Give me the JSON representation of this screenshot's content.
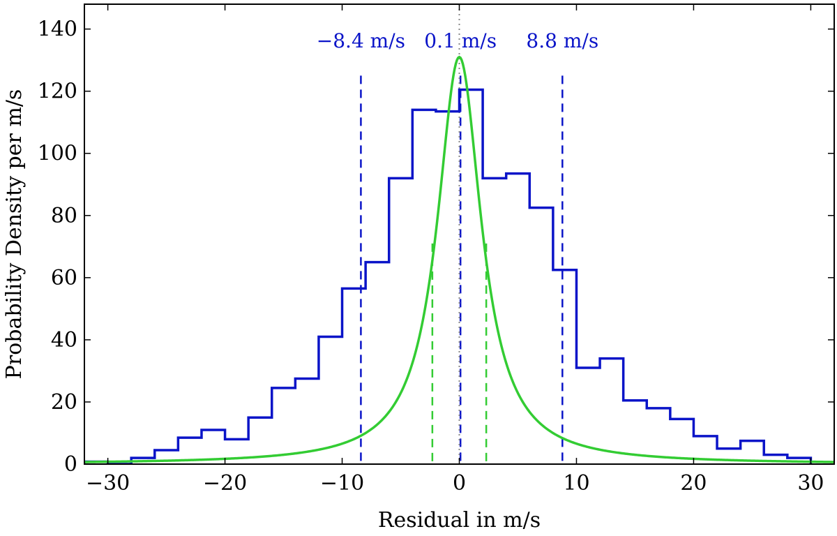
{
  "chart_data": {
    "type": "histogram",
    "title": "",
    "xlabel": "Residual in m/s",
    "ylabel": "Probability Density per m/s",
    "xlim": [
      -32,
      32
    ],
    "ylim": [
      0,
      148
    ],
    "xticks": [
      -30,
      -20,
      -10,
      0,
      10,
      20,
      30
    ],
    "xtick_labels": [
      "−30",
      "−20",
      "−10",
      "0",
      "10",
      "20",
      "30"
    ],
    "yticks": [
      0,
      20,
      40,
      60,
      80,
      100,
      120,
      140
    ],
    "ytick_labels": [
      "0",
      "20",
      "40",
      "60",
      "80",
      "100",
      "120",
      "140"
    ],
    "grid": false,
    "histogram": {
      "name": "",
      "color": "#0a14c8",
      "bin_edges": [
        -32,
        -30,
        -28,
        -26,
        -24,
        -22,
        -20,
        -18,
        -16,
        -14,
        -12,
        -10,
        -8,
        -6,
        -4,
        -2,
        0,
        2,
        4,
        6,
        8,
        10,
        12,
        14,
        16,
        18,
        20,
        22,
        24,
        26,
        28,
        30
      ],
      "values": [
        0.8,
        0,
        2,
        4.5,
        8.5,
        11,
        8,
        15,
        24.5,
        27.5,
        41,
        56.5,
        65,
        92,
        114,
        113.5,
        120.5,
        92,
        93.5,
        82.5,
        62.5,
        31,
        34,
        20.5,
        18,
        14.5,
        9,
        5,
        7.5,
        3,
        2
      ]
    },
    "fit_curve": {
      "name": "",
      "color": "#33cc33",
      "shape": "lorentzian",
      "peak": 131,
      "center": 0,
      "half_width": 2.3
    },
    "vlines": [
      {
        "x": -8.4,
        "y_top": 125,
        "style": "dashed",
        "color": "#0a14c8"
      },
      {
        "x": 0.1,
        "y_top": 125,
        "style": "dashed",
        "color": "#0a14c8"
      },
      {
        "x": 8.8,
        "y_top": 125,
        "style": "dashed",
        "color": "#0a14c8"
      },
      {
        "x": -2.3,
        "y_top": 71,
        "style": "dashed",
        "color": "#33cc33"
      },
      {
        "x": 2.3,
        "y_top": 71,
        "style": "dashed",
        "color": "#33cc33"
      },
      {
        "x": 0,
        "y_top": 148,
        "style": "dotted",
        "color": "#888888"
      }
    ],
    "annotations": [
      {
        "text": "−8.4 m/s",
        "x": -8.4,
        "color": "#0a14c8"
      },
      {
        "text": "0.1 m/s",
        "x": 0.1,
        "color": "#0a14c8"
      },
      {
        "text": "8.8 m/s",
        "x": 8.8,
        "color": "#0a14c8"
      }
    ]
  }
}
